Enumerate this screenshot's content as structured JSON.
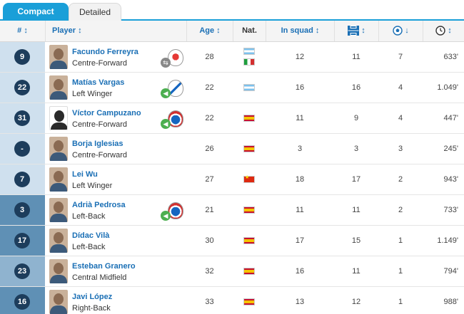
{
  "tabs": [
    {
      "label": "Compact",
      "active": true
    },
    {
      "label": "Detailed",
      "active": false
    }
  ],
  "columns": {
    "number": "# ↕",
    "player": "Player ↕",
    "age": "Age ↕",
    "nat": "Nat.",
    "in_squad": "In squad ↕",
    "appearances_icon": "pitch-icon",
    "appearances_sort": "↕",
    "goals_icon": "ball-icon",
    "goals_sort": "↓",
    "minutes_icon": "clock-icon",
    "minutes_sort": "↕"
  },
  "colors": {
    "accent": "#1a9fd8",
    "badge": "#1d3d5c",
    "link": "#1a6fb5",
    "num_bg_light": "#cfe0ee",
    "num_bg_mid": "#8fb3cf",
    "num_bg_dark": "#5f90b5"
  },
  "rows": [
    {
      "number": "9",
      "name": "Facundo Ferreyra",
      "position": "Centre-Forward",
      "transfer": "loan",
      "arrow": "⇆",
      "arrow_color": "grey",
      "age": "28",
      "nat": [
        "ar",
        "it"
      ],
      "in_squad": "12",
      "appearances": "11",
      "goals": "7",
      "minutes": "633'",
      "num_bg": "light"
    },
    {
      "number": "22",
      "name": "Matías Vargas",
      "position": "Left Winger",
      "transfer": "in",
      "arrow": "◀",
      "arrow_color": "green",
      "age": "22",
      "nat": [
        "ar"
      ],
      "in_squad": "16",
      "appearances": "16",
      "goals": "4",
      "minutes": "1.049'",
      "num_bg": "light"
    },
    {
      "number": "31",
      "name": "Víctor Campuzano",
      "position": "Centre-Forward",
      "transfer": "in",
      "arrow": "◀",
      "arrow_color": "green",
      "age": "22",
      "nat": [
        "es"
      ],
      "in_squad": "11",
      "appearances": "9",
      "goals": "4",
      "minutes": "447'",
      "num_bg": "light",
      "silhouette": true
    },
    {
      "number": "-",
      "name": "Borja Iglesias",
      "position": "Centre-Forward",
      "transfer": "",
      "age": "26",
      "nat": [
        "es"
      ],
      "in_squad": "3",
      "appearances": "3",
      "goals": "3",
      "minutes": "245'",
      "num_bg": "light"
    },
    {
      "number": "7",
      "name": "Lei Wu",
      "position": "Left Winger",
      "transfer": "",
      "age": "27",
      "nat": [
        "cn"
      ],
      "in_squad": "18",
      "appearances": "17",
      "goals": "2",
      "minutes": "943'",
      "num_bg": "light"
    },
    {
      "number": "3",
      "name": "Adrià Pedrosa",
      "position": "Left-Back",
      "transfer": "in",
      "arrow": "◀",
      "arrow_color": "green",
      "age": "21",
      "nat": [
        "es"
      ],
      "in_squad": "11",
      "appearances": "11",
      "goals": "2",
      "minutes": "733'",
      "num_bg": "dark"
    },
    {
      "number": "17",
      "name": "Dídac Vilà",
      "position": "Left-Back",
      "transfer": "",
      "age": "30",
      "nat": [
        "es"
      ],
      "in_squad": "17",
      "appearances": "15",
      "goals": "1",
      "minutes": "1.149'",
      "num_bg": "dark"
    },
    {
      "number": "23",
      "name": "Esteban Granero",
      "position": "Central Midfield",
      "transfer": "",
      "age": "32",
      "nat": [
        "es"
      ],
      "in_squad": "16",
      "appearances": "11",
      "goals": "1",
      "minutes": "794'",
      "num_bg": "mid"
    },
    {
      "number": "16",
      "name": "Javi López",
      "position": "Right-Back",
      "transfer": "",
      "age": "33",
      "nat": [
        "es"
      ],
      "in_squad": "13",
      "appearances": "12",
      "goals": "1",
      "minutes": "988'",
      "num_bg": "dark"
    }
  ]
}
